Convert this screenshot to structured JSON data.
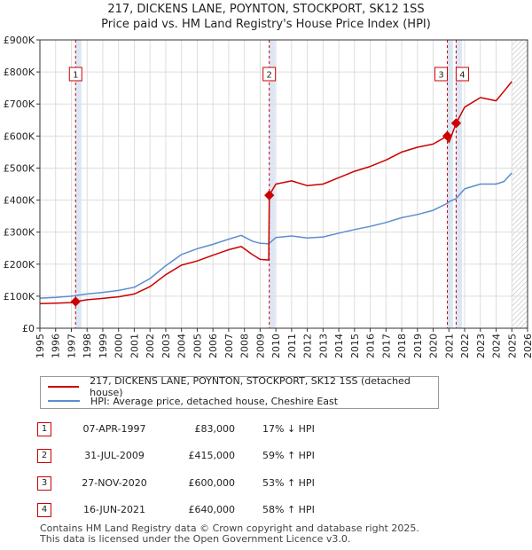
{
  "title_line1": "217, DICKENS LANE, POYNTON, STOCKPORT, SK12 1SS",
  "title_line2": "Price paid vs. HM Land Registry's House Price Index (HPI)",
  "legend": {
    "property_label": "217, DICKENS LANE, POYNTON, STOCKPORT, SK12 1SS (detached house)",
    "hpi_label": "HPI: Average price, detached house, Cheshire East"
  },
  "colors": {
    "property": "#cc0000",
    "hpi": "#5b8ecf",
    "shade": "#dde6f4",
    "grid": "#dddddd"
  },
  "sales": [
    {
      "num": "1",
      "date": "07-APR-1997",
      "price": "£83,000",
      "hpi": "17% ↓ HPI"
    },
    {
      "num": "2",
      "date": "31-JUL-2009",
      "price": "£415,000",
      "hpi": "59% ↑ HPI"
    },
    {
      "num": "3",
      "date": "27-NOV-2020",
      "price": "£600,000",
      "hpi": "53% ↑ HPI"
    },
    {
      "num": "4",
      "date": "16-JUN-2021",
      "price": "£640,000",
      "hpi": "58% ↑ HPI"
    }
  ],
  "footer_line1": "Contains HM Land Registry data © Crown copyright and database right 2025.",
  "footer_line2": "This data is licensed under the Open Government Licence v3.0.",
  "chart_data": {
    "type": "line",
    "xlim": [
      1995,
      2026
    ],
    "ylim": [
      0,
      900000
    ],
    "x_ticks": [
      1995,
      1996,
      1997,
      1998,
      1999,
      2000,
      2001,
      2002,
      2003,
      2004,
      2005,
      2006,
      2007,
      2008,
      2009,
      2010,
      2011,
      2012,
      2013,
      2014,
      2015,
      2016,
      2017,
      2018,
      2019,
      2020,
      2021,
      2022,
      2023,
      2024,
      2025,
      2026
    ],
    "y_ticks": [
      0,
      100000,
      200000,
      300000,
      400000,
      500000,
      600000,
      700000,
      800000,
      900000
    ],
    "y_tick_labels": [
      "£0",
      "£100K",
      "£200K",
      "£300K",
      "£400K",
      "£500K",
      "£600K",
      "£700K",
      "£800K",
      "£900K"
    ],
    "grid": true,
    "future_hatch_from": 2025.0,
    "sale_markers": [
      {
        "label": "1",
        "x": 1997.27,
        "y": 83000
      },
      {
        "label": "2",
        "x": 2009.58,
        "y": 415000
      },
      {
        "label": "3",
        "x": 2020.9,
        "y": 600000
      },
      {
        "label": "4",
        "x": 2021.46,
        "y": 640000
      }
    ],
    "series": [
      {
        "name": "217, DICKENS LANE, POYNTON, STOCKPORT, SK12 1SS (detached house)",
        "color": "#cc0000",
        "x": [
          1995,
          1996,
          1997,
          1997.27,
          1998,
          1999,
          2000,
          2001,
          2002,
          2003,
          2004,
          2005,
          2006,
          2007,
          2007.8,
          2008.5,
          2009,
          2009.55,
          2009.58,
          2010,
          2011,
          2012,
          2013,
          2014,
          2015,
          2016,
          2017,
          2018,
          2019,
          2020,
          2020.9,
          2021,
          2021.46,
          2022,
          2023,
          2024,
          2024.5,
          2025
        ],
        "y": [
          77000,
          78000,
          80000,
          83000,
          89000,
          93000,
          98000,
          107000,
          130000,
          167000,
          197000,
          210000,
          228000,
          245000,
          255000,
          230000,
          215000,
          213000,
          415000,
          450000,
          460000,
          445000,
          450000,
          470000,
          490000,
          505000,
          525000,
          550000,
          565000,
          575000,
          600000,
          580000,
          640000,
          690000,
          720000,
          710000,
          740000,
          770000
        ]
      },
      {
        "name": "HPI: Average price, detached house, Cheshire East",
        "color": "#5b8ecf",
        "x": [
          1995,
          1996,
          1997,
          1998,
          1999,
          2000,
          2001,
          2002,
          2003,
          2004,
          2005,
          2006,
          2007,
          2007.8,
          2008.5,
          2009,
          2009.55,
          2010,
          2011,
          2012,
          2013,
          2014,
          2015,
          2016,
          2017,
          2018,
          2019,
          2020,
          2020.9,
          2021,
          2021.46,
          2022,
          2023,
          2024,
          2024.5,
          2025
        ],
        "y": [
          94000,
          96000,
          100000,
          107000,
          112000,
          118000,
          128000,
          155000,
          195000,
          230000,
          248000,
          262000,
          278000,
          290000,
          272000,
          265000,
          264000,
          283000,
          288000,
          282000,
          285000,
          297000,
          308000,
          318000,
          330000,
          345000,
          355000,
          368000,
          390000,
          395000,
          405000,
          435000,
          450000,
          450000,
          458000,
          485000
        ]
      }
    ]
  }
}
